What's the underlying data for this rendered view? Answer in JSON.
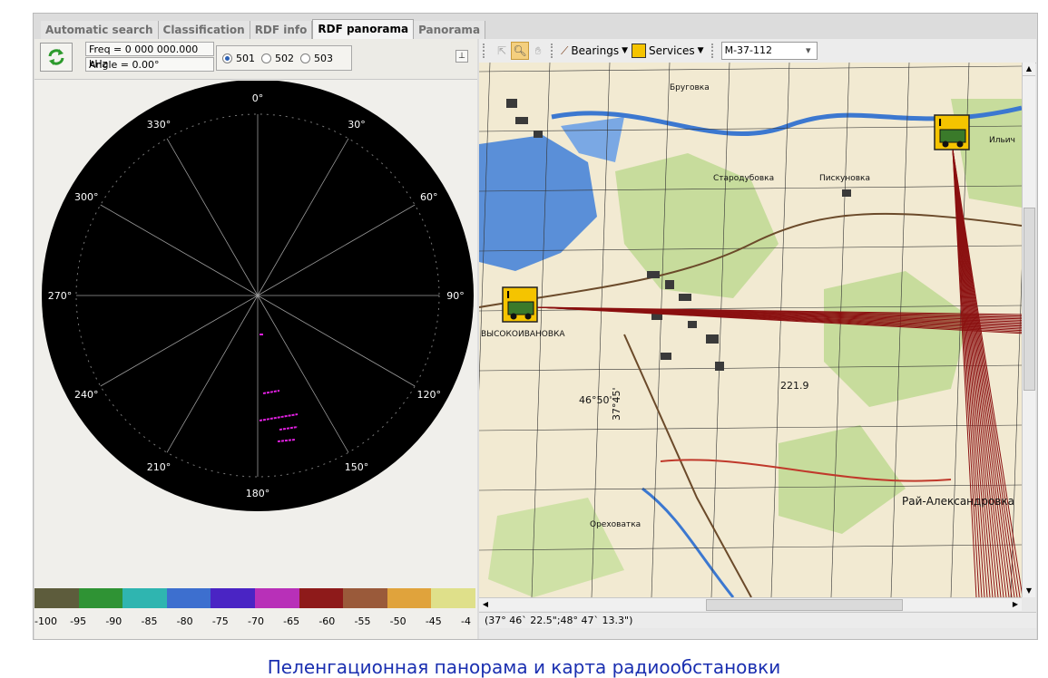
{
  "tabs": [
    {
      "label": "Automatic search",
      "active": false
    },
    {
      "label": "Classification",
      "active": false
    },
    {
      "label": "RDF info",
      "active": false
    },
    {
      "label": "RDF panorama",
      "active": true
    },
    {
      "label": "Panorama",
      "active": false
    }
  ],
  "rdf": {
    "freq_text": "Freq = 0 000 000.000 kHz",
    "angle_text": "Angle = 0.00°",
    "stations": [
      {
        "label": "501",
        "selected": true
      },
      {
        "label": "502",
        "selected": false
      },
      {
        "label": "503",
        "selected": false
      }
    ],
    "pin_icon": "pin-icon",
    "refresh_icon": "refresh-icon"
  },
  "polar": {
    "angle_labels": [
      "0°",
      "30°",
      "60°",
      "90°",
      "120°",
      "150°",
      "180°",
      "210°",
      "240°",
      "270°",
      "300°",
      "330°"
    ]
  },
  "color_scale": {
    "colors": [
      "#5d5c3c",
      "#2f9334",
      "#2fb5b0",
      "#3d6fcf",
      "#4a24c4",
      "#b830b8",
      "#8e1a1a",
      "#9a5a3a",
      "#e0a33c",
      "#dfe08a"
    ],
    "ticks": [
      "-100",
      "-95",
      "-90",
      "-85",
      "-80",
      "-75",
      "-70",
      "-65",
      "-60",
      "-55",
      "-50",
      "-45",
      "-4"
    ]
  },
  "map_toolbar": {
    "bearings_label": "Bearings",
    "services_label": "Services",
    "map_sheet": "M-37-112"
  },
  "map": {
    "labels": [
      "Бруговка",
      "Стародубовка",
      "Пискуновка",
      "ВЫСОКОИВАНОВКА",
      "Рай-Александровка",
      "Ореховатка",
      "221.9",
      "46°50'",
      "37°45'",
      "Ильич"
    ],
    "bearing_color": "#8b1010"
  },
  "status": {
    "coords": "(37° 46` 22.5\";48° 47` 13.3\")"
  },
  "caption": "Пеленгационная панорама и карта радиообстановки"
}
